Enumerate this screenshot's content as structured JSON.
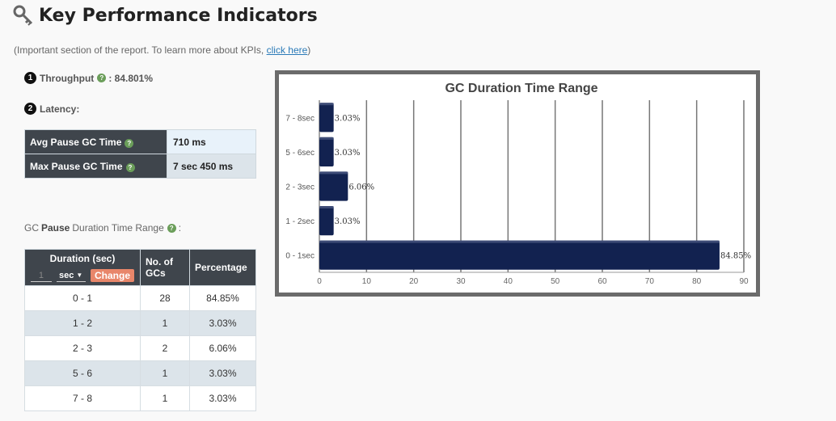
{
  "header": {
    "title": "Key Performance Indicators",
    "subtitle_prefix": "(Important section of the report. To learn more about KPIs, ",
    "subtitle_link": "click here",
    "subtitle_suffix": ")"
  },
  "throughput": {
    "number": "1",
    "label": "Throughput",
    "value": ": 84.801%"
  },
  "latency": {
    "number": "2",
    "label": "Latency:",
    "rows": [
      {
        "label": "Avg Pause GC Time",
        "value": "710 ms"
      },
      {
        "label": "Max Pause GC Time",
        "value": "7 sec 450 ms"
      }
    ]
  },
  "range_caption": {
    "prefix": "GC",
    "bold": "Pause",
    "suffix": "Duration Time Range",
    "help": "?",
    "colon": ":"
  },
  "duration_table": {
    "headers": {
      "duration": "Duration (sec)",
      "count": "No. of GCs",
      "percentage": "Percentage"
    },
    "controls": {
      "input_value": "1",
      "unit": "sec",
      "change_label": "Change"
    },
    "rows": [
      {
        "range": "0 - 1",
        "count": "28",
        "pct": "84.85%"
      },
      {
        "range": "1 - 2",
        "count": "1",
        "pct": "3.03%"
      },
      {
        "range": "2 - 3",
        "count": "2",
        "pct": "6.06%"
      },
      {
        "range": "5 - 6",
        "count": "1",
        "pct": "3.03%"
      },
      {
        "range": "7 - 8",
        "count": "1",
        "pct": "3.03%"
      }
    ]
  },
  "help_glyph": "?",
  "colors": {
    "bar": "#122250",
    "header_bg": "#3f454c",
    "help": "#6b9e5a",
    "change_btn": "#e8866a"
  },
  "chart_data": {
    "type": "bar",
    "orientation": "horizontal",
    "title": "GC Duration Time Range",
    "categories": [
      "0 - 1sec",
      "1 - 2sec",
      "2 - 3sec",
      "5 - 6sec",
      "7 - 8sec"
    ],
    "values": [
      84.85,
      3.03,
      6.06,
      3.03,
      3.03
    ],
    "data_labels": [
      "84.85%",
      "3.03%",
      "6.06%",
      "3.03%",
      "3.03%"
    ],
    "xlim": [
      0,
      90
    ],
    "x_ticks": [
      0,
      10,
      20,
      30,
      40,
      50,
      60,
      70,
      80,
      90
    ],
    "grid": true
  }
}
